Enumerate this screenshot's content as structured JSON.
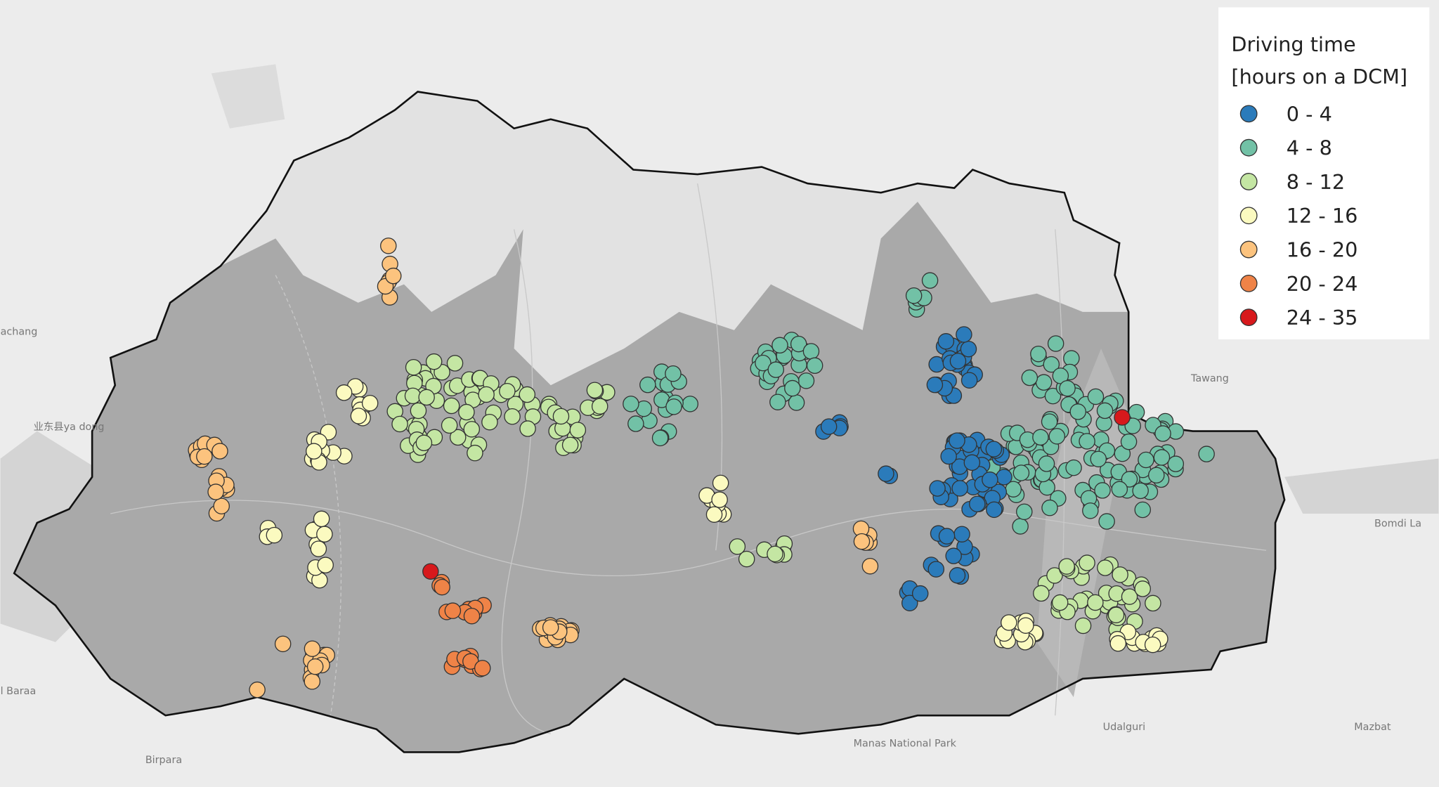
{
  "legend": {
    "title_lines": [
      "Driving time",
      "[hours on a DCM]"
    ],
    "items": [
      {
        "label": "0 - 4",
        "color": "#2b7bba"
      },
      {
        "label": "4 - 8",
        "color": "#72c1a6"
      },
      {
        "label": "8 - 12",
        "color": "#c4e6a3"
      },
      {
        "label": "12 - 16",
        "color": "#fbfac0"
      },
      {
        "label": "16 - 20",
        "color": "#fcc37e"
      },
      {
        "label": "20 - 24",
        "color": "#ef8347"
      },
      {
        "label": "24 - 35",
        "color": "#d7191c"
      }
    ]
  },
  "map_labels": [
    "Tawang",
    "Bomdi La",
    "Udalguri",
    "Mazbat",
    "Birpara",
    "Manas National Park",
    "业东县ya dong",
    "achang",
    "l Baraa"
  ]
}
